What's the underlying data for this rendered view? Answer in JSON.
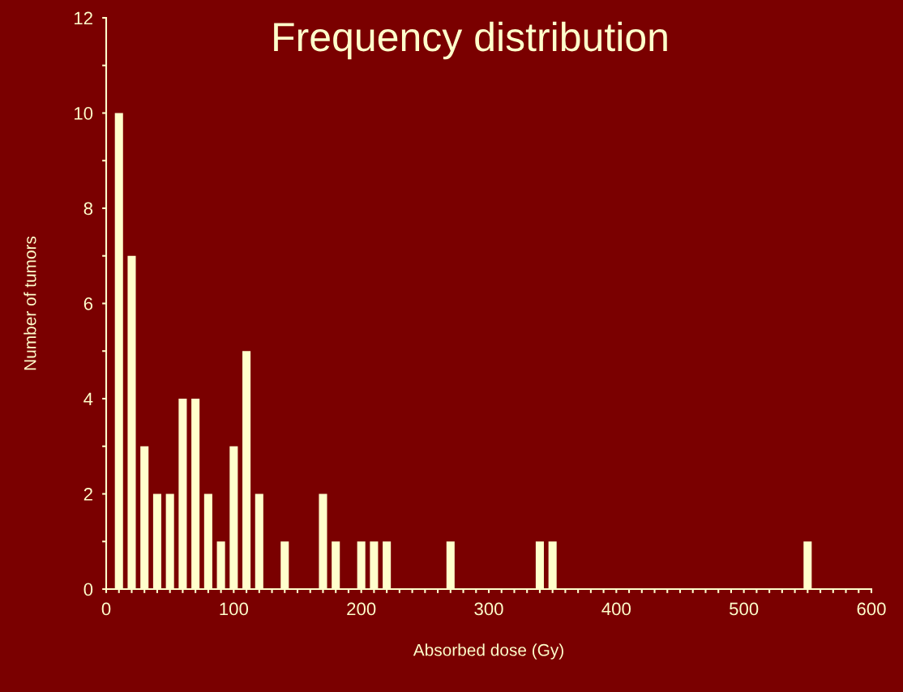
{
  "chart_data": {
    "type": "bar",
    "title": "Frequency distribution",
    "xlabel": "Absorbed dose (Gy)",
    "ylabel": "Number of tumors",
    "x": [
      10,
      20,
      30,
      40,
      50,
      60,
      70,
      80,
      90,
      100,
      110,
      120,
      140,
      170,
      180,
      200,
      210,
      220,
      270,
      340,
      350,
      550
    ],
    "values": [
      10,
      7,
      3,
      2,
      2,
      4,
      4,
      2,
      1,
      3,
      5,
      2,
      1,
      2,
      1,
      1,
      1,
      1,
      1,
      1,
      1,
      1
    ],
    "color": "#ffffcc",
    "xlim": [
      0,
      600
    ],
    "xticks": [
      0,
      {
        "value": 10,
        "label": null
      },
      {
        "value": 20,
        "label": null
      },
      {
        "value": 30,
        "label": null
      },
      {
        "value": 40,
        "label": null
      },
      {
        "value": 50,
        "label": null
      },
      {
        "value": 60,
        "label": null
      },
      {
        "value": 70,
        "label": null
      },
      {
        "value": 80,
        "label": null
      },
      {
        "value": 90,
        "label": null
      },
      100,
      {
        "value": 110,
        "label": null
      },
      {
        "value": 120,
        "label": null
      },
      {
        "value": 130,
        "label": null
      },
      {
        "value": 140,
        "label": null
      },
      {
        "value": 150,
        "label": null
      },
      {
        "value": 160,
        "label": null
      },
      {
        "value": 170,
        "label": null
      },
      {
        "value": 180,
        "label": null
      },
      {
        "value": 190,
        "label": null
      },
      200,
      {
        "value": 210,
        "label": null
      },
      {
        "value": 220,
        "label": null
      },
      {
        "value": 230,
        "label": null
      },
      {
        "value": 240,
        "label": null
      },
      {
        "value": 250,
        "label": null
      },
      {
        "value": 260,
        "label": null
      },
      {
        "value": 270,
        "label": null
      },
      {
        "value": 280,
        "label": null
      },
      {
        "value": 290,
        "label": null
      },
      300,
      {
        "value": 310,
        "label": null
      },
      {
        "value": 320,
        "label": null
      },
      {
        "value": 330,
        "label": null
      },
      {
        "value": 340,
        "label": null
      },
      {
        "value": 350,
        "label": null
      },
      {
        "value": 360,
        "label": null
      },
      {
        "value": 370,
        "label": null
      },
      {
        "value": 380,
        "label": null
      },
      {
        "value": 390,
        "label": null
      },
      400,
      {
        "value": 410,
        "label": null
      },
      {
        "value": 420,
        "label": null
      },
      {
        "value": 430,
        "label": null
      },
      {
        "value": 440,
        "label": null
      },
      {
        "value": 450,
        "label": null
      },
      {
        "value": 460,
        "label": null
      },
      {
        "value": 470,
        "label": null
      },
      {
        "value": 480,
        "label": null
      },
      {
        "value": 490,
        "label": null
      },
      500,
      {
        "value": 510,
        "label": null
      },
      {
        "value": 520,
        "label": null
      },
      {
        "value": 530,
        "label": null
      },
      {
        "value": 540,
        "label": null
      },
      {
        "value": 550,
        "label": null
      },
      {
        "value": 560,
        "label": null
      },
      {
        "value": 570,
        "label": null
      },
      {
        "value": 580,
        "label": null
      },
      {
        "value": 590,
        "label": null
      },
      600
    ],
    "ylim": [
      0,
      12
    ],
    "yticks": [
      0,
      {
        "value": 1,
        "label": null
      },
      2,
      {
        "value": 3,
        "label": null
      },
      4,
      {
        "value": 5,
        "label": null
      },
      6,
      {
        "value": 7,
        "label": null
      },
      8,
      {
        "value": 9,
        "label": null
      },
      10,
      {
        "value": 11,
        "label": null
      },
      12
    ],
    "grid": false
  }
}
